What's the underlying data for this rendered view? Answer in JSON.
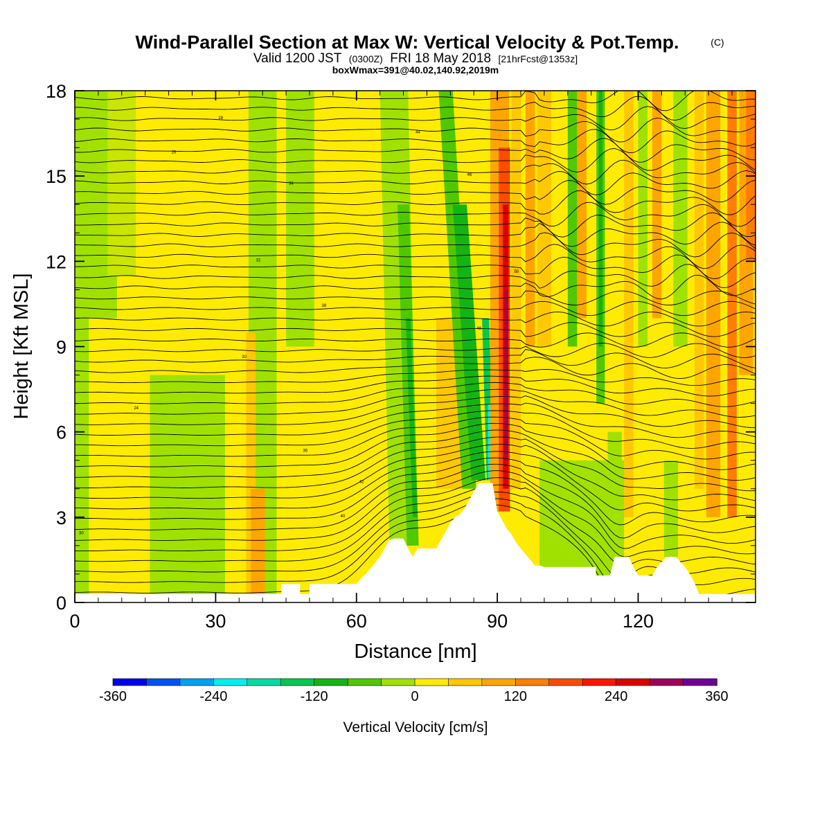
{
  "header": {
    "title": "Wind-Parallel Section at Max W: Vertical Velocity & Pot.Temp.",
    "copyright": "(C)",
    "valid_prefix": "Valid 1200 JST",
    "valid_utc": "(0300Z)",
    "valid_date": "FRI 18 May 2018",
    "forecast": "[21hrFcst@1353z]",
    "boxline": "boxWmax=391@40.02,140.92,2019m"
  },
  "chart_data": {
    "type": "heatmap",
    "title": "Wind-Parallel Section at Max W: Vertical Velocity & Pot.Temp.",
    "xlabel": "Distance [nm]",
    "ylabel": "Height [Kft MSL]",
    "xlim": [
      0,
      145
    ],
    "ylim": [
      0,
      18
    ],
    "x_ticks": [
      0,
      30,
      60,
      90,
      120
    ],
    "y_ticks": [
      0,
      3,
      6,
      9,
      12,
      15,
      18
    ],
    "colorbar": {
      "label": "Vertical Velocity [cm/s]",
      "ticks": [
        -360,
        -240,
        -120,
        0,
        120,
        240,
        360
      ],
      "levels": [
        -360,
        -330,
        -300,
        -270,
        -240,
        -210,
        -180,
        -150,
        -120,
        -90,
        -60,
        -30,
        0,
        30,
        60,
        90,
        120,
        150,
        180,
        210,
        240,
        270,
        300,
        330,
        360
      ],
      "colors": [
        "#0000f0",
        "#0050f5",
        "#00a0f5",
        "#00f0f0",
        "#00dca0",
        "#00c850",
        "#14b414",
        "#50c800",
        "#a0e100",
        "#ffeb00",
        "#ffc800",
        "#ffa500",
        "#ff7d00",
        "#ff4b00",
        "#ff1400",
        "#dc0000",
        "#a0005a",
        "#6e0096"
      ]
    },
    "terrain_profile": [
      [
        0,
        0.3
      ],
      [
        44,
        0.3
      ],
      [
        44,
        0.65
      ],
      [
        48,
        0.65
      ],
      [
        48,
        0.3
      ],
      [
        50,
        0.3
      ],
      [
        50,
        0.65
      ],
      [
        60,
        0.65
      ],
      [
        61,
        0.85
      ],
      [
        62,
        1.0
      ],
      [
        63,
        1.2
      ],
      [
        64,
        1.4
      ],
      [
        65,
        1.6
      ],
      [
        66,
        1.9
      ],
      [
        67,
        2.2
      ],
      [
        68,
        2.25
      ],
      [
        70,
        2.25
      ],
      [
        71,
        1.9
      ],
      [
        72,
        1.6
      ],
      [
        73,
        1.9
      ],
      [
        77,
        1.9
      ],
      [
        78,
        2.2
      ],
      [
        79,
        2.5
      ],
      [
        80,
        2.8
      ],
      [
        81,
        3.0
      ],
      [
        82,
        3.1
      ],
      [
        83,
        3.3
      ],
      [
        84,
        3.6
      ],
      [
        85,
        3.9
      ],
      [
        86,
        4.2
      ],
      [
        89,
        4.2
      ],
      [
        90,
        3.2
      ],
      [
        91,
        2.9
      ],
      [
        92,
        2.6
      ],
      [
        93,
        2.4
      ],
      [
        94,
        2.1
      ],
      [
        95,
        1.9
      ],
      [
        96,
        1.7
      ],
      [
        97,
        1.5
      ],
      [
        98,
        1.3
      ],
      [
        99,
        1.3
      ],
      [
        100,
        1.25
      ],
      [
        111,
        1.25
      ],
      [
        111,
        0.95
      ],
      [
        114,
        0.95
      ],
      [
        115,
        1.6
      ],
      [
        118,
        1.6
      ],
      [
        119,
        1.25
      ],
      [
        120,
        0.95
      ],
      [
        123,
        0.95
      ],
      [
        124,
        1.25
      ],
      [
        126,
        1.6
      ],
      [
        128,
        1.6
      ],
      [
        130,
        1.25
      ],
      [
        131,
        1.0
      ],
      [
        132,
        0.7
      ],
      [
        133,
        0.3
      ],
      [
        145,
        0.3
      ]
    ],
    "isotherm_labels": [
      "30",
      "24",
      "26",
      "28",
      "30",
      "32",
      "34",
      "36",
      "38",
      "40",
      "42",
      "44",
      "46",
      "48",
      "50"
    ]
  }
}
